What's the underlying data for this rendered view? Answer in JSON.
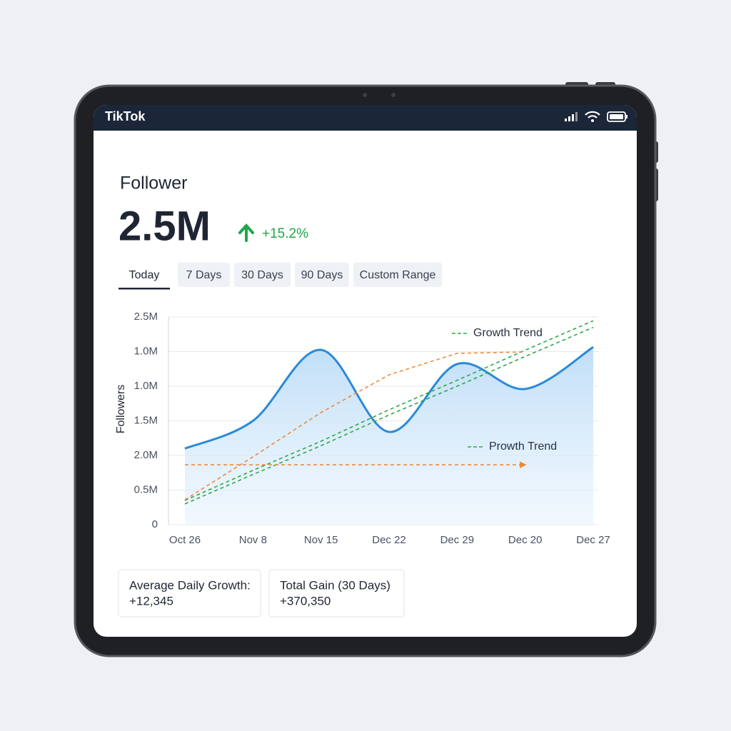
{
  "app": {
    "name": "TikTok"
  },
  "header": {
    "title": "Follower",
    "value": "2.5M",
    "change": "+15.2%"
  },
  "tabs": [
    "Today",
    "7 Days",
    "30 Days",
    "90 Days",
    "Custom Range"
  ],
  "selected_tab": 0,
  "chart_data": {
    "type": "line",
    "y_label": "Followers",
    "categories": [
      "Oct 26",
      "Nov 8",
      "Nov 15",
      "Dec 22",
      "Dec 29",
      "Dec 20",
      "Dec 27"
    ],
    "ylim": [
      0,
      6
    ],
    "yticks": [
      0,
      {
        "value": 1,
        "label": "0.5M"
      },
      {
        "value": 2,
        "label": "2.0M"
      },
      {
        "value": 3,
        "label": "1.5M"
      },
      {
        "value": 4,
        "label": "1.0M"
      },
      {
        "value": 5,
        "label": "1.0M"
      },
      {
        "value": 6,
        "label": "2.5M"
      }
    ],
    "grid": true,
    "series": [
      {
        "color": "#2b8ad8",
        "area": true,
        "values": [
          2.2,
          3.0,
          5.05,
          2.68,
          4.64,
          3.92,
          5.13
        ]
      },
      {
        "name": "Growth Trend",
        "color": "#2ea84a",
        "dashed": true,
        "values": [
          0.7,
          1.57,
          2.41,
          3.32,
          4.17,
          5.04,
          5.89
        ]
      },
      {
        "name": "Prowth Trend",
        "color": "#2ea84a",
        "dashed": true,
        "values": [
          0.6,
          1.45,
          2.28,
          3.17,
          4.0,
          4.86,
          5.7
        ]
      },
      {
        "color": "#ee8a3a",
        "dashed": true,
        "values": [
          0.72,
          1.96,
          3.24,
          4.33,
          4.95,
          4.99,
          null
        ]
      },
      {
        "color": "#ee8a3a",
        "dashed": true,
        "arrow": true,
        "values": [
          1.73,
          1.73,
          1.73,
          1.73,
          1.73,
          1.73,
          null
        ]
      }
    ]
  },
  "stats": [
    {
      "label": "Average Daily Growth:",
      "value": "+12,345"
    },
    {
      "label": "Total Gain (30 Days)",
      "value": "+370,350"
    }
  ]
}
